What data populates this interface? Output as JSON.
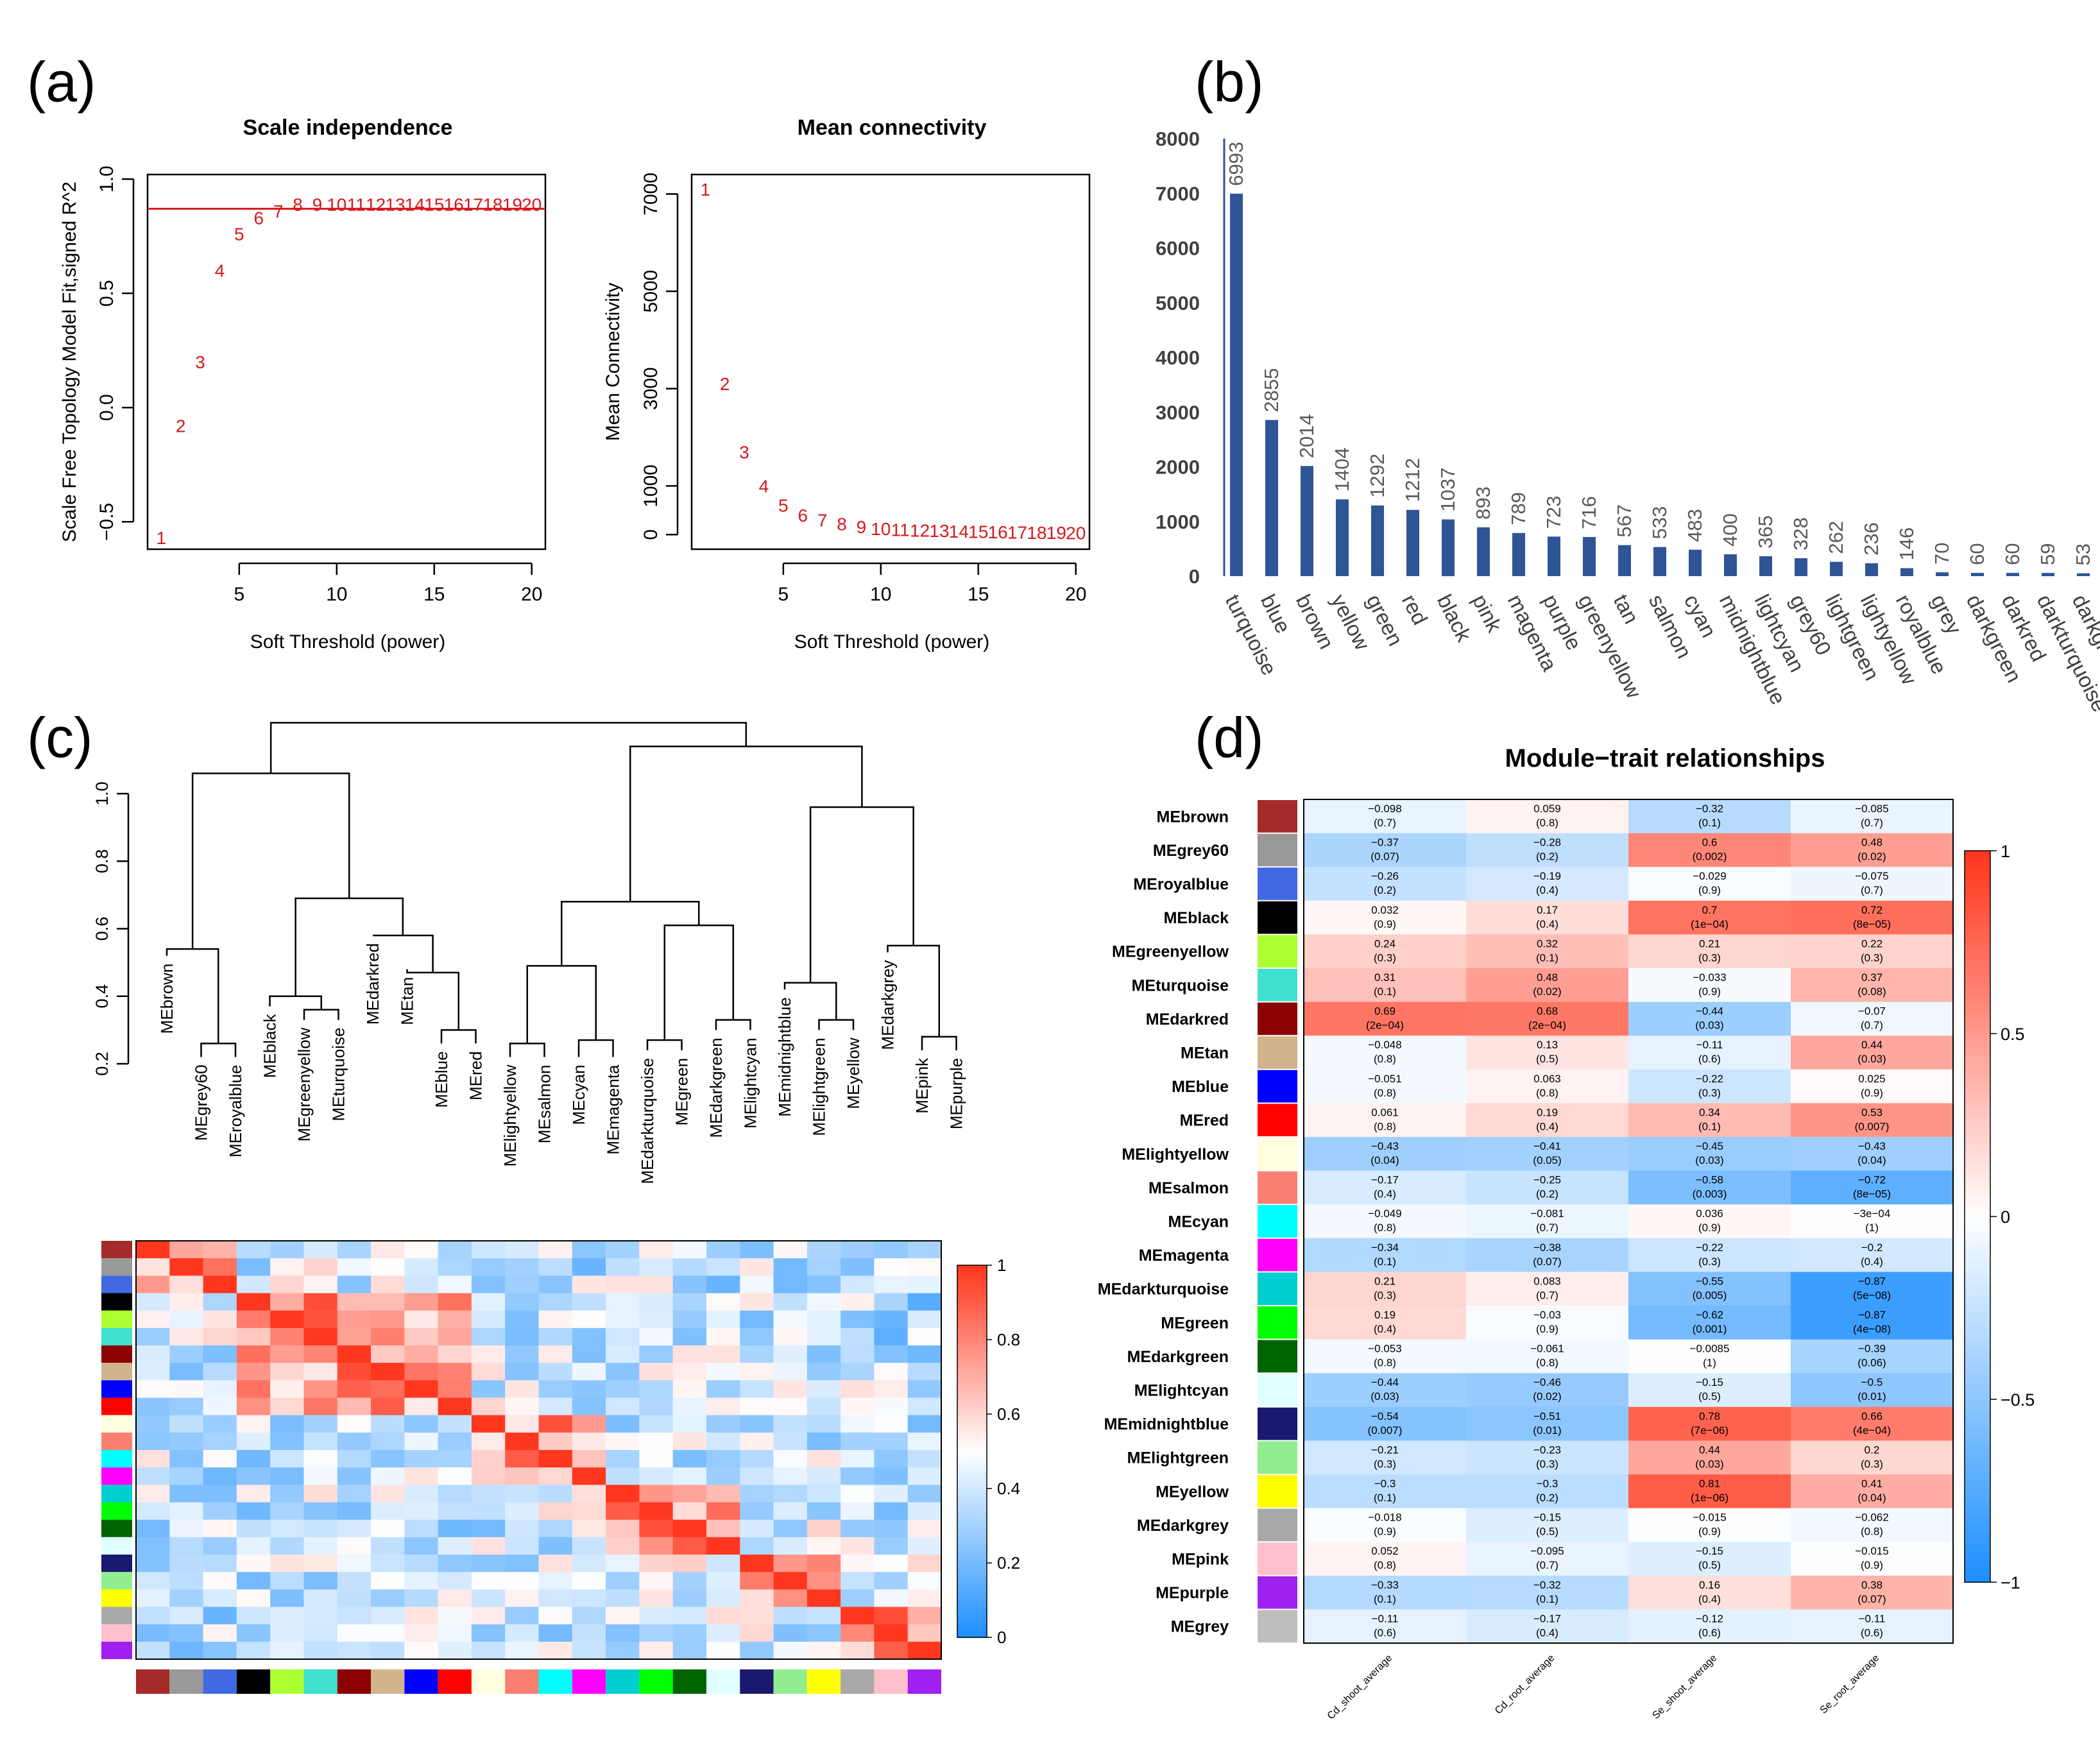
{
  "panels": {
    "a": "(a)",
    "b": "(b)",
    "c": "(c)",
    "d": "(d)"
  },
  "chart_data": [
    {
      "type": "scatter",
      "id": "scale_independence",
      "title": "Scale independence",
      "xlabel": "Soft Threshold (power)",
      "ylabel": "Scale Free Topology Model Fit,signed R^2",
      "xlim": [
        0.3,
        20.7
      ],
      "ylim": [
        -0.62,
        1.02
      ],
      "xticks": [
        5,
        10,
        15,
        20
      ],
      "yticks": [
        -0.5,
        0.0,
        0.5,
        1.0
      ],
      "xtick_labels": [
        "5",
        "10",
        "15",
        "20"
      ],
      "ytick_labels": [
        "−0.5",
        "0.0",
        "0.5",
        "1.0"
      ],
      "hline": 0.87,
      "points": [
        {
          "label": "1",
          "x": 1,
          "y": -0.57
        },
        {
          "label": "2",
          "x": 2,
          "y": -0.08
        },
        {
          "label": "3",
          "x": 3,
          "y": 0.2
        },
        {
          "label": "4",
          "x": 4,
          "y": 0.6
        },
        {
          "label": "5",
          "x": 5,
          "y": 0.76
        },
        {
          "label": "6",
          "x": 6,
          "y": 0.83
        },
        {
          "label": "7",
          "x": 7,
          "y": 0.86
        },
        {
          "label": "8",
          "x": 8,
          "y": 0.89
        },
        {
          "label": "9",
          "x": 9,
          "y": 0.89
        },
        {
          "label": "10",
          "x": 10,
          "y": 0.89
        },
        {
          "label": "11",
          "x": 11,
          "y": 0.89
        },
        {
          "label": "12",
          "x": 12,
          "y": 0.89
        },
        {
          "label": "13",
          "x": 13,
          "y": 0.89
        },
        {
          "label": "14",
          "x": 14,
          "y": 0.89
        },
        {
          "label": "15",
          "x": 15,
          "y": 0.89
        },
        {
          "label": "16",
          "x": 16,
          "y": 0.89
        },
        {
          "label": "17",
          "x": 17,
          "y": 0.89
        },
        {
          "label": "18",
          "x": 18,
          "y": 0.89
        },
        {
          "label": "19",
          "x": 19,
          "y": 0.89
        },
        {
          "label": "20",
          "x": 20,
          "y": 0.89
        }
      ]
    },
    {
      "type": "scatter",
      "id": "mean_connectivity",
      "title": "Mean connectivity",
      "xlabel": "Soft Threshold (power)",
      "ylabel": "Mean Connectivity",
      "xlim": [
        0.3,
        20.7
      ],
      "ylim": [
        -300,
        7400
      ],
      "xticks": [
        5,
        10,
        15,
        20
      ],
      "yticks": [
        0,
        1000,
        3000,
        5000,
        7000
      ],
      "xtick_labels": [
        "5",
        "10",
        "15",
        "20"
      ],
      "ytick_labels": [
        "0",
        "1000",
        "3000",
        "5000",
        "7000"
      ],
      "points": [
        {
          "label": "1",
          "x": 1,
          "y": 7100
        },
        {
          "label": "2",
          "x": 2,
          "y": 3100
        },
        {
          "label": "3",
          "x": 3,
          "y": 1700
        },
        {
          "label": "4",
          "x": 4,
          "y": 1000
        },
        {
          "label": "5",
          "x": 5,
          "y": 600
        },
        {
          "label": "6",
          "x": 6,
          "y": 400
        },
        {
          "label": "7",
          "x": 7,
          "y": 300
        },
        {
          "label": "8",
          "x": 8,
          "y": 220
        },
        {
          "label": "9",
          "x": 9,
          "y": 160
        },
        {
          "label": "10",
          "x": 10,
          "y": 120
        },
        {
          "label": "11",
          "x": 11,
          "y": 100
        },
        {
          "label": "12",
          "x": 12,
          "y": 90
        },
        {
          "label": "13",
          "x": 13,
          "y": 80
        },
        {
          "label": "14",
          "x": 14,
          "y": 70
        },
        {
          "label": "15",
          "x": 15,
          "y": 60
        },
        {
          "label": "16",
          "x": 16,
          "y": 55
        },
        {
          "label": "17",
          "x": 17,
          "y": 50
        },
        {
          "label": "18",
          "x": 18,
          "y": 45
        },
        {
          "label": "19",
          "x": 19,
          "y": 40
        },
        {
          "label": "20",
          "x": 20,
          "y": 35
        }
      ]
    },
    {
      "type": "bar",
      "id": "module_sizes",
      "categories": [
        "turquoise",
        "blue",
        "brown",
        "yellow",
        "green",
        "red",
        "black",
        "pink",
        "magenta",
        "purple",
        "greenyellow",
        "tan",
        "salmon",
        "cyan",
        "midnightblue",
        "lightcyan",
        "grey60",
        "lightgreen",
        "lightyellow",
        "royalblue",
        "grey",
        "darkgreen",
        "darkred",
        "darkturquoise",
        "darkgrey"
      ],
      "values": [
        6993,
        2855,
        2014,
        1404,
        1292,
        1212,
        1037,
        893,
        789,
        723,
        716,
        567,
        533,
        483,
        400,
        365,
        328,
        262,
        236,
        146,
        70,
        60,
        60,
        59,
        53
      ],
      "ylim": [
        0,
        8000
      ],
      "yticks": [
        0,
        1000,
        2000,
        3000,
        4000,
        5000,
        6000,
        7000,
        8000
      ],
      "ytick_labels": [
        "0",
        "1000",
        "2000",
        "3000",
        "4000",
        "5000",
        "6000",
        "7000",
        "8000"
      ],
      "bar_color": "#2f5597"
    },
    {
      "type": "heatmap",
      "id": "module_eigengene_dendrogram_heatmap",
      "dendrogram_axis_ticks": [
        "0.2",
        "0.4",
        "0.6",
        "0.8",
        "1.0"
      ],
      "leaves": [
        "MEbrown",
        "MEgrey60",
        "MEroyalblue",
        "MEblack",
        "MEgreenyellow",
        "MEturquoise",
        "MEdarkred",
        "MEtan",
        "MEblue",
        "MEred",
        "MElightyellow",
        "MEsalmon",
        "MEcyan",
        "MEmagenta",
        "MEdarkturquoise",
        "MEgreen",
        "MEdarkgreen",
        "MElightcyan",
        "MEmidnightblue",
        "MElightgreen",
        "MEyellow",
        "MEdarkgrey",
        "MEpink",
        "MEpurple"
      ],
      "module_colors": [
        "#a52a2a",
        "#999999",
        "#4169e1",
        "#000000",
        "#adff2f",
        "#40e0d0",
        "#8b0000",
        "#d2b48c",
        "#0000ff",
        "#ff0000",
        "#ffffe0",
        "#fa8072",
        "#00ffff",
        "#ff00ff",
        "#00ced1",
        "#00ff00",
        "#006400",
        "#e0ffff",
        "#191970",
        "#90ee90",
        "#ffff00",
        "#a9a9a9",
        "#ffc0cb",
        "#a020f0"
      ],
      "scale": {
        "min": 0,
        "max": 1,
        "ticks": [
          "0",
          "0.2",
          "0.4",
          "0.6",
          "0.8",
          "1"
        ]
      }
    },
    {
      "type": "heatmap",
      "id": "module_trait_relationships",
      "title": "Module−trait relationships",
      "traits": [
        "Cd_shoot_average",
        "Cd_root_average",
        "Se_shoot_average",
        "Se_root_average"
      ],
      "scale": {
        "min": -1,
        "max": 1,
        "ticks": [
          "1",
          "0.5",
          "0",
          "−0.5",
          "−1"
        ]
      },
      "rows": [
        {
          "module": "MEbrown",
          "color": "#a52a2a",
          "r": [
            -0.098,
            0.059,
            -0.32,
            -0.085
          ],
          "r_text": [
            "−0.098",
            "0.059",
            "−0.32",
            "−0.085"
          ],
          "p": [
            "(0.7)",
            "(0.8)",
            "(0.1)",
            "(0.7)"
          ]
        },
        {
          "module": "MEgrey60",
          "color": "#999999",
          "r": [
            -0.37,
            -0.28,
            0.6,
            0.48
          ],
          "r_text": [
            "−0.37",
            "−0.28",
            "0.6",
            "0.48"
          ],
          "p": [
            "(0.07)",
            "(0.2)",
            "(0.002)",
            "(0.02)"
          ]
        },
        {
          "module": "MEroyalblue",
          "color": "#4169e1",
          "r": [
            -0.26,
            -0.19,
            -0.029,
            -0.075
          ],
          "r_text": [
            "−0.26",
            "−0.19",
            "−0.029",
            "−0.075"
          ],
          "p": [
            "(0.2)",
            "(0.4)",
            "(0.9)",
            "(0.7)"
          ]
        },
        {
          "module": "MEblack",
          "color": "#000000",
          "r": [
            0.032,
            0.17,
            0.7,
            0.72
          ],
          "r_text": [
            "0.032",
            "0.17",
            "0.7",
            "0.72"
          ],
          "p": [
            "(0.9)",
            "(0.4)",
            "(1e−04)",
            "(8e−05)"
          ]
        },
        {
          "module": "MEgreenyellow",
          "color": "#adff2f",
          "r": [
            0.24,
            0.32,
            0.21,
            0.22
          ],
          "r_text": [
            "0.24",
            "0.32",
            "0.21",
            "0.22"
          ],
          "p": [
            "(0.3)",
            "(0.1)",
            "(0.3)",
            "(0.3)"
          ]
        },
        {
          "module": "MEturquoise",
          "color": "#40e0d0",
          "r": [
            0.31,
            0.48,
            -0.033,
            0.37
          ],
          "r_text": [
            "0.31",
            "0.48",
            "−0.033",
            "0.37"
          ],
          "p": [
            "(0.1)",
            "(0.02)",
            "(0.9)",
            "(0.08)"
          ]
        },
        {
          "module": "MEdarkred",
          "color": "#8b0000",
          "r": [
            0.69,
            0.68,
            -0.44,
            -0.07
          ],
          "r_text": [
            "0.69",
            "0.68",
            "−0.44",
            "−0.07"
          ],
          "p": [
            "(2e−04)",
            "(2e−04)",
            "(0.03)",
            "(0.7)"
          ]
        },
        {
          "module": "MEtan",
          "color": "#d2b48c",
          "r": [
            -0.048,
            0.13,
            -0.11,
            0.44
          ],
          "r_text": [
            "−0.048",
            "0.13",
            "−0.11",
            "0.44"
          ],
          "p": [
            "(0.8)",
            "(0.5)",
            "(0.6)",
            "(0.03)"
          ]
        },
        {
          "module": "MEblue",
          "color": "#0000ff",
          "r": [
            -0.051,
            0.063,
            -0.22,
            0.025
          ],
          "r_text": [
            "−0.051",
            "0.063",
            "−0.22",
            "0.025"
          ],
          "p": [
            "(0.8)",
            "(0.8)",
            "(0.3)",
            "(0.9)"
          ]
        },
        {
          "module": "MEred",
          "color": "#ff0000",
          "r": [
            0.061,
            0.19,
            0.34,
            0.53
          ],
          "r_text": [
            "0.061",
            "0.19",
            "0.34",
            "0.53"
          ],
          "p": [
            "(0.8)",
            "(0.4)",
            "(0.1)",
            "(0.007)"
          ]
        },
        {
          "module": "MElightyellow",
          "color": "#ffffe0",
          "r": [
            -0.43,
            -0.41,
            -0.45,
            -0.43
          ],
          "r_text": [
            "−0.43",
            "−0.41",
            "−0.45",
            "−0.43"
          ],
          "p": [
            "(0.04)",
            "(0.05)",
            "(0.03)",
            "(0.04)"
          ]
        },
        {
          "module": "MEsalmon",
          "color": "#fa8072",
          "r": [
            -0.17,
            -0.25,
            -0.58,
            -0.72
          ],
          "r_text": [
            "−0.17",
            "−0.25",
            "−0.58",
            "−0.72"
          ],
          "p": [
            "(0.4)",
            "(0.2)",
            "(0.003)",
            "(8e−05)"
          ]
        },
        {
          "module": "MEcyan",
          "color": "#00ffff",
          "r": [
            -0.049,
            -0.081,
            0.036,
            -0.0003
          ],
          "r_text": [
            "−0.049",
            "−0.081",
            "0.036",
            "−3e−04"
          ],
          "p": [
            "(0.8)",
            "(0.7)",
            "(0.9)",
            "(1)"
          ]
        },
        {
          "module": "MEmagenta",
          "color": "#ff00ff",
          "r": [
            -0.34,
            -0.38,
            -0.22,
            -0.2
          ],
          "r_text": [
            "−0.34",
            "−0.38",
            "−0.22",
            "−0.2"
          ],
          "p": [
            "(0.1)",
            "(0.07)",
            "(0.3)",
            "(0.4)"
          ]
        },
        {
          "module": "MEdarkturquoise",
          "color": "#00ced1",
          "r": [
            0.21,
            0.083,
            -0.55,
            -0.87
          ],
          "r_text": [
            "0.21",
            "0.083",
            "−0.55",
            "−0.87"
          ],
          "p": [
            "(0.3)",
            "(0.7)",
            "(0.005)",
            "(5e−08)"
          ]
        },
        {
          "module": "MEgreen",
          "color": "#00ff00",
          "r": [
            0.19,
            -0.03,
            -0.62,
            -0.87
          ],
          "r_text": [
            "0.19",
            "−0.03",
            "−0.62",
            "−0.87"
          ],
          "p": [
            "(0.4)",
            "(0.9)",
            "(0.001)",
            "(4e−08)"
          ]
        },
        {
          "module": "MEdarkgreen",
          "color": "#006400",
          "r": [
            -0.053,
            -0.061,
            -0.0085,
            -0.39
          ],
          "r_text": [
            "−0.053",
            "−0.061",
            "−0.0085",
            "−0.39"
          ],
          "p": [
            "(0.8)",
            "(0.8)",
            "(1)",
            "(0.06)"
          ]
        },
        {
          "module": "MElightcyan",
          "color": "#e0ffff",
          "r": [
            -0.44,
            -0.46,
            -0.15,
            -0.5
          ],
          "r_text": [
            "−0.44",
            "−0.46",
            "−0.15",
            "−0.5"
          ],
          "p": [
            "(0.03)",
            "(0.02)",
            "(0.5)",
            "(0.01)"
          ]
        },
        {
          "module": "MEmidnightblue",
          "color": "#191970",
          "r": [
            -0.54,
            -0.51,
            0.78,
            0.66
          ],
          "r_text": [
            "−0.54",
            "−0.51",
            "0.78",
            "0.66"
          ],
          "p": [
            "(0.007)",
            "(0.01)",
            "(7e−06)",
            "(4e−04)"
          ]
        },
        {
          "module": "MElightgreen",
          "color": "#90ee90",
          "r": [
            -0.21,
            -0.23,
            0.44,
            0.2
          ],
          "r_text": [
            "−0.21",
            "−0.23",
            "0.44",
            "0.2"
          ],
          "p": [
            "(0.3)",
            "(0.3)",
            "(0.03)",
            "(0.3)"
          ]
        },
        {
          "module": "MEyellow",
          "color": "#ffff00",
          "r": [
            -0.3,
            -0.3,
            0.81,
            0.41
          ],
          "r_text": [
            "−0.3",
            "−0.3",
            "0.81",
            "0.41"
          ],
          "p": [
            "(0.1)",
            "(0.2)",
            "(1e−06)",
            "(0.04)"
          ]
        },
        {
          "module": "MEdarkgrey",
          "color": "#a9a9a9",
          "r": [
            -0.018,
            -0.15,
            -0.015,
            -0.062
          ],
          "r_text": [
            "−0.018",
            "−0.15",
            "−0.015",
            "−0.062"
          ],
          "p": [
            "(0.9)",
            "(0.5)",
            "(0.9)",
            "(0.8)"
          ]
        },
        {
          "module": "MEpink",
          "color": "#ffc0cb",
          "r": [
            0.052,
            -0.095,
            -0.15,
            -0.015
          ],
          "r_text": [
            "0.052",
            "−0.095",
            "−0.15",
            "−0.015"
          ],
          "p": [
            "(0.8)",
            "(0.7)",
            "(0.5)",
            "(0.9)"
          ]
        },
        {
          "module": "MEpurple",
          "color": "#a020f0",
          "r": [
            -0.33,
            -0.32,
            0.16,
            0.38
          ],
          "r_text": [
            "−0.33",
            "−0.32",
            "0.16",
            "0.38"
          ],
          "p": [
            "(0.1)",
            "(0.1)",
            "(0.4)",
            "(0.07)"
          ]
        },
        {
          "module": "MEgrey",
          "color": "#bebebe",
          "r": [
            -0.11,
            -0.17,
            -0.12,
            -0.11
          ],
          "r_text": [
            "−0.11",
            "−0.17",
            "−0.12",
            "−0.11"
          ],
          "p": [
            "(0.6)",
            "(0.4)",
            "(0.6)",
            "(0.6)"
          ]
        }
      ]
    }
  ]
}
